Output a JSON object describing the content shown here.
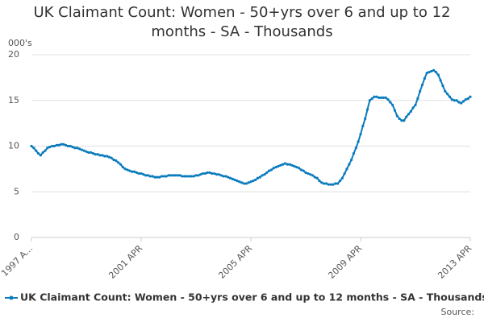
{
  "chart_data": {
    "type": "line",
    "title": "UK Claimant Count: Women - 50+yrs over 6 and up to 12 months - SA - Thousands",
    "y_label": "000's",
    "source": "Source:",
    "categories": [
      "1997 A...",
      null,
      null,
      null,
      null,
      null,
      null,
      null,
      null,
      null,
      null,
      null,
      null,
      null,
      null,
      null,
      null,
      null,
      null,
      null,
      null,
      null,
      null,
      null,
      null,
      null,
      null,
      null,
      null,
      null,
      null,
      null,
      null,
      null,
      null,
      null,
      null,
      null,
      null,
      null,
      null,
      null,
      null,
      null,
      null,
      null,
      null,
      null,
      "2001 APR",
      null,
      null,
      null,
      null,
      null,
      null,
      null,
      null,
      null,
      null,
      null,
      null,
      null,
      null,
      null,
      null,
      null,
      null,
      null,
      null,
      null,
      null,
      null,
      null,
      null,
      null,
      null,
      null,
      null,
      null,
      null,
      null,
      null,
      null,
      null,
      null,
      null,
      null,
      null,
      null,
      null,
      null,
      null,
      null,
      null,
      null,
      null,
      "2005 APR",
      null,
      null,
      null,
      null,
      null,
      null,
      null,
      null,
      null,
      null,
      null,
      null,
      null,
      null,
      null,
      null,
      null,
      null,
      null,
      null,
      null,
      null,
      null,
      null,
      null,
      null,
      null,
      null,
      null,
      null,
      null,
      null,
      null,
      null,
      null,
      null,
      null,
      null,
      null,
      null,
      null,
      null,
      null,
      null,
      null,
      null,
      null,
      "2009 APR",
      null,
      null,
      null,
      null,
      null,
      null,
      null,
      null,
      null,
      null,
      null,
      null,
      null,
      null,
      null,
      null,
      null,
      null,
      null,
      null,
      null,
      null,
      null,
      null,
      null,
      null,
      null,
      null,
      null,
      null,
      null,
      null,
      null,
      null,
      null,
      null,
      null,
      null,
      null,
      null,
      null,
      null,
      null,
      null,
      null,
      null,
      null,
      "2013 APR"
    ],
    "series": [
      {
        "name": "UK Claimant Count: Women - 50+yrs over 6 and up to 12 months - SA - Thousands",
        "color": "#0a7bbd",
        "values": [
          10.0,
          9.8,
          9.5,
          9.2,
          9.0,
          9.3,
          9.5,
          9.8,
          9.9,
          10.0,
          10.0,
          10.1,
          10.1,
          10.2,
          10.2,
          10.1,
          10.0,
          10.0,
          9.9,
          9.8,
          9.8,
          9.7,
          9.6,
          9.5,
          9.4,
          9.3,
          9.3,
          9.2,
          9.1,
          9.1,
          9.0,
          9.0,
          8.9,
          8.9,
          8.8,
          8.7,
          8.5,
          8.4,
          8.2,
          8.0,
          7.7,
          7.5,
          7.4,
          7.3,
          7.2,
          7.2,
          7.1,
          7.0,
          7.0,
          6.9,
          6.8,
          6.8,
          6.7,
          6.7,
          6.6,
          6.6,
          6.6,
          6.7,
          6.7,
          6.7,
          6.8,
          6.8,
          6.8,
          6.8,
          6.8,
          6.8,
          6.7,
          6.7,
          6.7,
          6.7,
          6.7,
          6.7,
          6.8,
          6.8,
          6.9,
          7.0,
          7.0,
          7.1,
          7.1,
          7.0,
          7.0,
          6.9,
          6.9,
          6.8,
          6.7,
          6.7,
          6.6,
          6.5,
          6.4,
          6.3,
          6.2,
          6.1,
          6.0,
          5.9,
          5.9,
          6.0,
          6.1,
          6.2,
          6.3,
          6.5,
          6.6,
          6.8,
          6.9,
          7.1,
          7.3,
          7.4,
          7.6,
          7.7,
          7.8,
          7.9,
          8.0,
          8.1,
          8.0,
          8.0,
          7.9,
          7.8,
          7.7,
          7.6,
          7.4,
          7.3,
          7.1,
          7.0,
          6.9,
          6.8,
          6.6,
          6.5,
          6.2,
          6.0,
          5.9,
          5.9,
          5.8,
          5.8,
          5.8,
          5.9,
          5.9,
          6.2,
          6.5,
          7.0,
          7.5,
          8.0,
          8.5,
          9.2,
          9.8,
          10.5,
          11.3,
          12.2,
          13.0,
          14.0,
          15.0,
          15.2,
          15.4,
          15.4,
          15.3,
          15.3,
          15.3,
          15.3,
          15.1,
          14.8,
          14.5,
          13.9,
          13.3,
          13.0,
          12.8,
          12.8,
          13.2,
          13.5,
          13.8,
          14.2,
          14.5,
          15.2,
          16.0,
          16.7,
          17.4,
          18.0,
          18.1,
          18.2,
          18.3,
          18.1,
          17.8,
          17.2,
          16.6,
          16.0,
          15.7,
          15.4,
          15.1,
          15.0,
          15.0,
          14.8,
          14.7,
          14.9,
          15.1,
          15.2,
          15.4
        ]
      }
    ],
    "ylim": [
      0,
      20
    ],
    "yticks": [
      0,
      5,
      10,
      15,
      20
    ],
    "grid": true
  }
}
